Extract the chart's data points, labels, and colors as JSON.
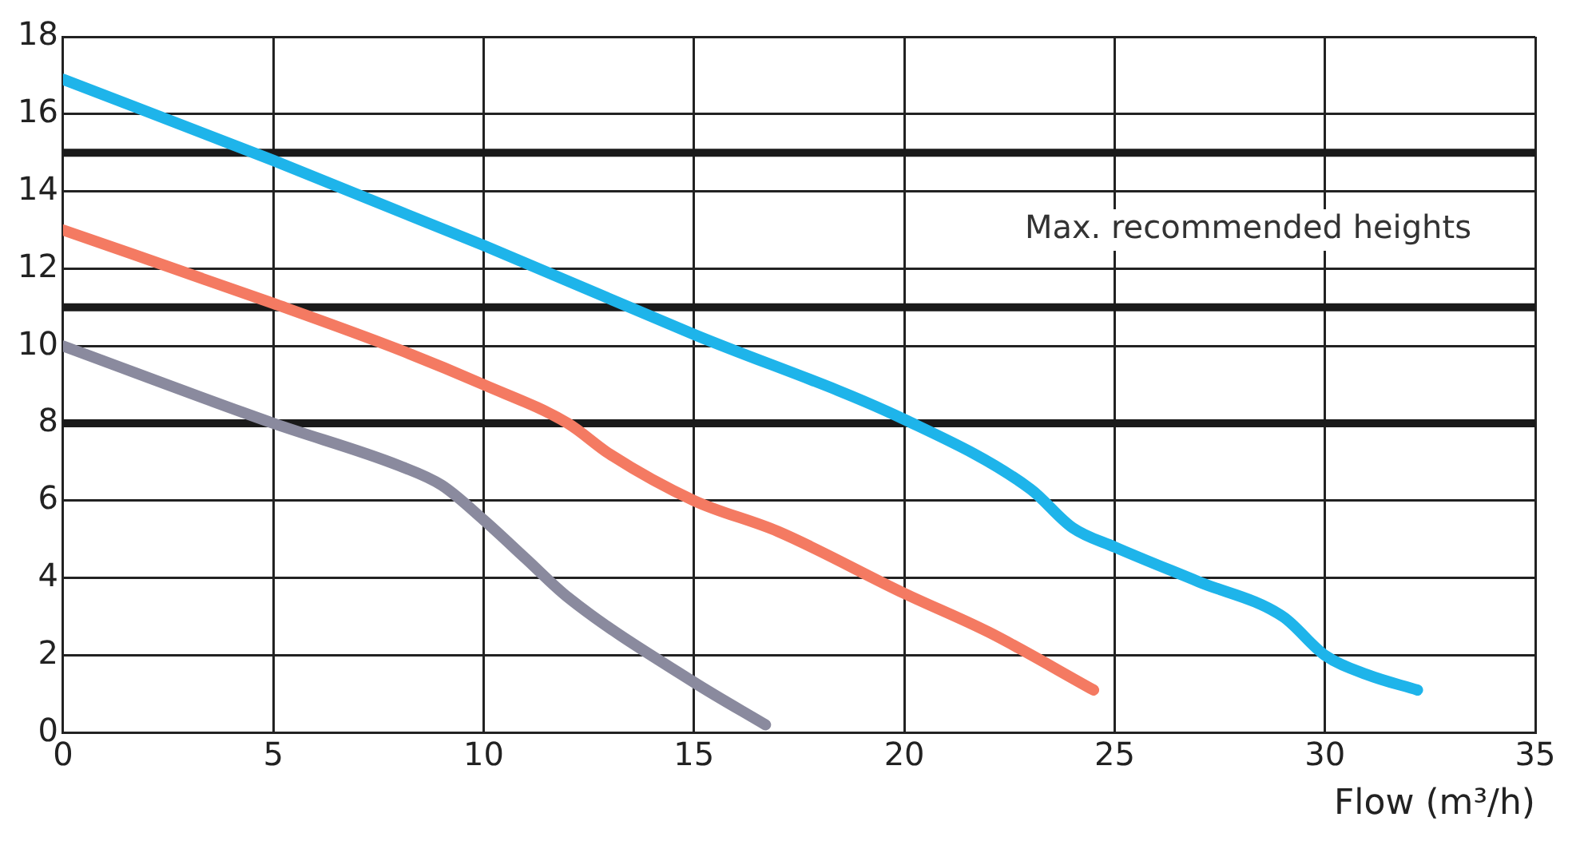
{
  "chart_data": {
    "type": "line",
    "xlabel": "Flow (m³/h)",
    "annotations": [
      "Max. recommended heights"
    ],
    "xlim": [
      0,
      35
    ],
    "xticks": [
      0,
      5,
      10,
      15,
      20,
      25,
      30,
      35
    ],
    "ylim": [
      0,
      18
    ],
    "yticks": [
      0,
      2,
      4,
      6,
      8,
      10,
      12,
      14,
      16,
      18
    ],
    "grid": true,
    "legend": false,
    "marker": "none",
    "line_style": "solid",
    "ref_lines": [
      {
        "axis": "y",
        "value": 15,
        "color": "#1a1a1a"
      },
      {
        "axis": "y",
        "value": 11,
        "color": "#1a1a1a"
      },
      {
        "axis": "y",
        "value": 8,
        "color": "#1a1a1a"
      }
    ],
    "series": [
      {
        "color": "#1eb4ea",
        "x": [
          0,
          5,
          10,
          15,
          20,
          23,
          24,
          25,
          27,
          29,
          30,
          31,
          32.2
        ],
        "values": [
          16.9,
          14.8,
          12.6,
          10.3,
          8.1,
          6.3,
          5.3,
          4.8,
          3.9,
          3,
          2,
          1.5,
          1.1
        ]
      },
      {
        "color": "#f47a62",
        "x": [
          0,
          5,
          8,
          10,
          12,
          13,
          15,
          17,
          20,
          22,
          24.5
        ],
        "values": [
          13,
          11.1,
          9.9,
          9,
          8,
          7.2,
          6,
          5.2,
          3.6,
          2.6,
          1.1
        ]
      },
      {
        "color": "#8a8a9e",
        "x": [
          0,
          5,
          8,
          9,
          10,
          11,
          12,
          15,
          16.7
        ],
        "values": [
          10,
          8,
          6.9,
          6.4,
          5.5,
          4.5,
          3.5,
          1.3,
          0.2
        ]
      }
    ]
  }
}
